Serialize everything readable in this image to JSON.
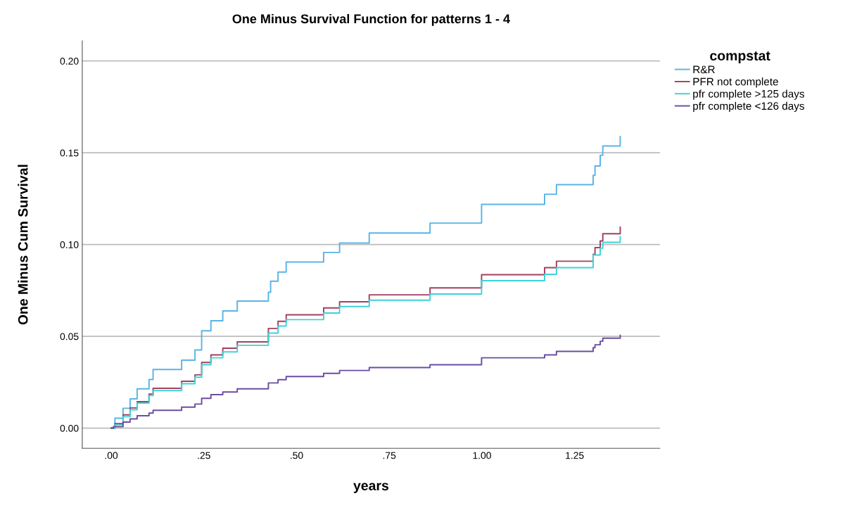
{
  "chart_data": {
    "type": "step",
    "title": "One Minus Survival Function for patterns 1 - 4",
    "xlabel": "years",
    "ylabel": "One Minus Cum Survival",
    "legend_title": "compstat",
    "legend": "top right",
    "grid": "y",
    "xlim": [
      -0.078,
      1.48
    ],
    "ylim": [
      -0.011,
      0.211
    ],
    "xticks": [
      {
        "value": 0,
        "label": ".00"
      },
      {
        "value": 0.25,
        "label": ".25"
      },
      {
        "value": 0.5,
        "label": ".50"
      },
      {
        "value": 0.75,
        "label": ".75"
      },
      {
        "value": 1,
        "label": "1.00"
      },
      {
        "value": 1.25,
        "label": "1.25"
      }
    ],
    "yticks": [
      {
        "value": 0,
        "label": "0.00"
      },
      {
        "value": 0.05,
        "label": "0.05"
      },
      {
        "value": 0.1,
        "label": "0.10"
      },
      {
        "value": 0.15,
        "label": "0.15"
      },
      {
        "value": 0.2,
        "label": "0.20"
      }
    ],
    "series": [
      {
        "name": "R&R",
        "color": "#5ab4e6",
        "x": [
          0,
          0.01,
          0.032,
          0.051,
          0.07,
          0.102,
          0.113,
          0.19,
          0.226,
          0.244,
          0.269,
          0.301,
          0.34,
          0.424,
          0.43,
          0.45,
          0.472,
          0.573,
          0.616,
          0.696,
          0.86,
          0.999,
          1.169,
          1.201,
          1.3,
          1.305,
          1.319,
          1.326,
          1.373
        ],
        "values": [
          0,
          0.0054,
          0.0108,
          0.0159,
          0.0214,
          0.0265,
          0.0319,
          0.037,
          0.0426,
          0.053,
          0.0585,
          0.0638,
          0.0692,
          0.074,
          0.08,
          0.085,
          0.0905,
          0.0957,
          0.1008,
          0.1063,
          0.1117,
          0.1219,
          0.1274,
          0.1326,
          0.1377,
          0.1428,
          0.1486,
          0.1537,
          0.1588
        ]
      },
      {
        "name": "PFR not complete",
        "color": "#a3405f",
        "x": [
          0,
          0.01,
          0.032,
          0.051,
          0.07,
          0.102,
          0.113,
          0.19,
          0.226,
          0.244,
          0.269,
          0.301,
          0.34,
          0.424,
          0.45,
          0.472,
          0.573,
          0.616,
          0.696,
          0.86,
          0.999,
          1.169,
          1.201,
          1.3,
          1.305,
          1.319,
          1.326,
          1.373
        ],
        "values": [
          0,
          0.0024,
          0.0072,
          0.011,
          0.0144,
          0.0185,
          0.0217,
          0.0255,
          0.029,
          0.0358,
          0.0399,
          0.0435,
          0.047,
          0.0543,
          0.0582,
          0.0617,
          0.0655,
          0.0688,
          0.0726,
          0.0764,
          0.0836,
          0.0874,
          0.0909,
          0.0947,
          0.0983,
          0.102,
          0.1059,
          0.1095
        ]
      },
      {
        "name": "pfr complete >125 days",
        "color": "#3ed3d6",
        "x": [
          0,
          0.01,
          0.032,
          0.051,
          0.07,
          0.102,
          0.113,
          0.19,
          0.226,
          0.244,
          0.269,
          0.301,
          0.34,
          0.424,
          0.45,
          0.472,
          0.573,
          0.616,
          0.696,
          0.86,
          0.999,
          1.169,
          1.201,
          1.3,
          1.319,
          1.326,
          1.373
        ],
        "values": [
          0,
          0.0018,
          0.0062,
          0.01,
          0.0136,
          0.0177,
          0.0204,
          0.0242,
          0.0277,
          0.0345,
          0.0383,
          0.0415,
          0.0451,
          0.0518,
          0.0556,
          0.0591,
          0.0627,
          0.0662,
          0.0697,
          0.073,
          0.0803,
          0.0838,
          0.0874,
          0.0943,
          0.098,
          0.1012,
          0.1043
        ]
      },
      {
        "name": "pfr complete <126 days",
        "color": "#6b4da3",
        "x": [
          0,
          0.006,
          0.032,
          0.051,
          0.07,
          0.102,
          0.113,
          0.19,
          0.226,
          0.244,
          0.269,
          0.301,
          0.34,
          0.424,
          0.45,
          0.472,
          0.573,
          0.616,
          0.696,
          0.86,
          0.999,
          1.169,
          1.201,
          1.3,
          1.305,
          1.319,
          1.326,
          1.373
        ],
        "values": [
          0,
          0.0008,
          0.0033,
          0.005,
          0.0067,
          0.0082,
          0.0097,
          0.0114,
          0.0131,
          0.0162,
          0.0182,
          0.0197,
          0.0214,
          0.0246,
          0.0264,
          0.0281,
          0.0298,
          0.0314,
          0.033,
          0.0345,
          0.0383,
          0.0399,
          0.0418,
          0.0438,
          0.0454,
          0.0473,
          0.049,
          0.0505
        ]
      }
    ]
  }
}
